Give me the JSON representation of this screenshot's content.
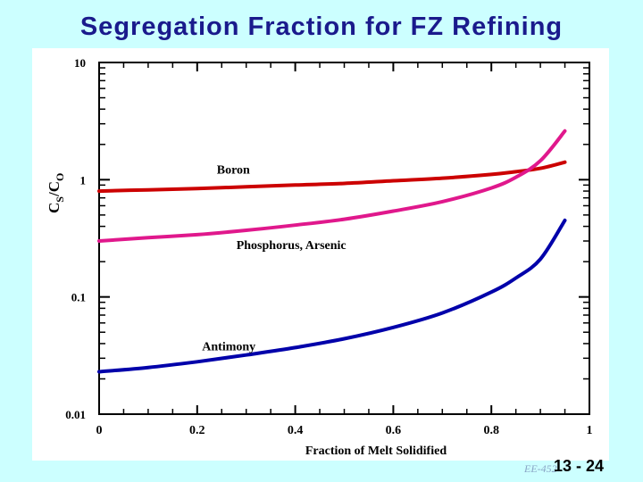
{
  "slide": {
    "title": "Segregation Fraction for FZ Refining",
    "footer_course": "EE-452",
    "footer_page": "13 - 24"
  },
  "colors": {
    "background": "#ccffff",
    "title": "#1a1a8c",
    "boron": "#cc0000",
    "phosphorus": "#e0188c",
    "antimony": "#0000aa"
  },
  "chart_data": {
    "type": "line",
    "xlabel": "Fraction of Melt Solidified",
    "ylabel": "Cs/Co",
    "xlim": [
      0,
      1
    ],
    "ylim": [
      0.01,
      10
    ],
    "yscale": "log",
    "grid": false,
    "x_ticks": [
      "0",
      "0.2",
      "0.4",
      "0.6",
      "0.8",
      "1"
    ],
    "y_ticks": [
      "0.01",
      "0.1",
      "1",
      "10"
    ],
    "series": [
      {
        "name": "Boron",
        "color": "#cc0000",
        "x": [
          0,
          0.1,
          0.2,
          0.3,
          0.4,
          0.5,
          0.6,
          0.7,
          0.8,
          0.85,
          0.9,
          0.95
        ],
        "y": [
          0.8,
          0.82,
          0.84,
          0.87,
          0.9,
          0.93,
          0.98,
          1.03,
          1.11,
          1.17,
          1.25,
          1.41
        ]
      },
      {
        "name": "Phosphorus, Arsenic",
        "color": "#e0188c",
        "x": [
          0,
          0.1,
          0.2,
          0.3,
          0.4,
          0.5,
          0.6,
          0.7,
          0.8,
          0.85,
          0.9,
          0.95
        ],
        "y": [
          0.3,
          0.32,
          0.34,
          0.37,
          0.41,
          0.46,
          0.54,
          0.65,
          0.85,
          1.05,
          1.45,
          2.6
        ]
      },
      {
        "name": "Antimony",
        "color": "#0000aa",
        "x": [
          0,
          0.1,
          0.2,
          0.3,
          0.4,
          0.5,
          0.6,
          0.7,
          0.8,
          0.85,
          0.9,
          0.95
        ],
        "y": [
          0.023,
          0.025,
          0.028,
          0.032,
          0.037,
          0.044,
          0.055,
          0.073,
          0.11,
          0.145,
          0.21,
          0.45
        ]
      }
    ]
  }
}
